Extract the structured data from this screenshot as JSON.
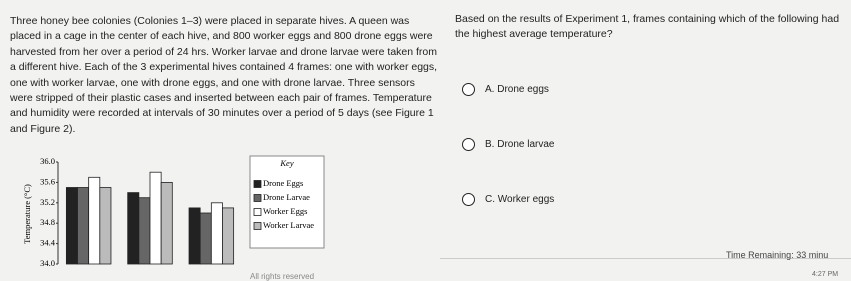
{
  "passage": "Three honey bee colonies (Colonies 1–3) were placed in separate hives. A queen was placed in a cage in the center of each hive, and 800 worker eggs and 800 drone eggs were harvested from her over a period of 24 hrs. Worker larvae and drone larvae were taken from a different hive. Each of the 3 experimental hives contained 4 frames: one with worker eggs, one with worker larvae, one with drone eggs, and one with drone larvae. Three sensors were stripped of their plastic cases and inserted between each pair of frames. Temperature and humidity were recorded at intervals of 30 minutes over a period of 5 days (see Figure 1 and Figure 2).",
  "chart_data": {
    "type": "bar",
    "y_label": "Temperature (°C)",
    "legend_title": "Key",
    "categories": [
      null,
      null,
      null
    ],
    "series": [
      {
        "name": "Drone Eggs",
        "color": "#222222",
        "values": [
          35.5,
          35.4,
          35.1
        ]
      },
      {
        "name": "Drone Larvae",
        "color": "#666666",
        "values": [
          35.5,
          35.3,
          35.0
        ]
      },
      {
        "name": "Worker Eggs",
        "color": "#ffffff",
        "values": [
          35.7,
          35.8,
          35.2
        ]
      },
      {
        "name": "Worker Larvae",
        "color": "#bbbbbb",
        "values": [
          35.5,
          35.6,
          35.1
        ]
      }
    ],
    "ylim": [
      34.0,
      36.0
    ],
    "yticks": [
      {
        "value": 36.0,
        "label": "36.0"
      },
      {
        "value": 35.6,
        "label": "35.6"
      },
      {
        "value": 35.2,
        "label": "35.2"
      },
      {
        "value": 34.8,
        "label": "34.8"
      },
      {
        "value": 34.4,
        "label": "34.4"
      },
      {
        "value": 34.0,
        "label": "34.0"
      }
    ]
  },
  "question": "Based on the results of Experiment 1, frames containing which of the following had the highest average temperature?",
  "options": [
    "A. Drone eggs",
    "B. Drone larvae",
    "C. Worker eggs"
  ],
  "footer": {
    "timer": "Time Remaining: 33 minu",
    "time": "4:27 PM",
    "rights": "All rights reserved"
  }
}
